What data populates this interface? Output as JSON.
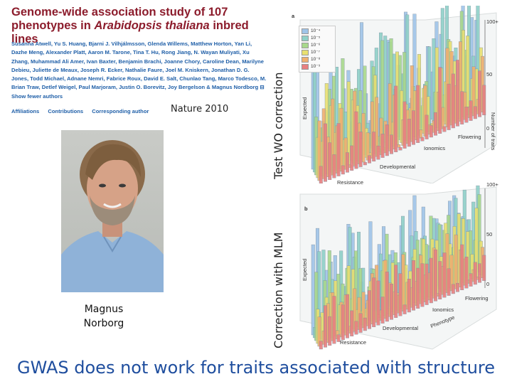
{
  "paper": {
    "title_prefix": "Genome-wide association study of 107 phenotypes in ",
    "title_italic": "Arabidopsis thaliana",
    "title_suffix": " inbred lines",
    "authors": "Susanna Atwell, Yu S. Huang, Bjarni J. Vilhjálmsson, Glenda Willems, Matthew Horton, Yan Li, Dazhe Meng, Alexander Platt, Aaron M. Tarone, Tina T. Hu, Rong Jiang, N. Wayan Muliyati, Xu Zhang, Muhammad Ali Amer, Ivan Baxter, Benjamin Brachi, Joanne Chory, Caroline Dean, Marilyne Debieu, Juliette de Meaux, Joseph R. Ecker, Nathalie Faure, Joel M. Kniskern, Jonathan D. G. Jones, Todd Michael, Adnane Nemri, Fabrice Roux, David E. Salt, Chunlao Tang, Marco Todesco, M. Brian Traw, Detlef Weigel, Paul Marjoram, Justin O. Borevitz, Joy Bergelson & Magnus Nordborg",
    "show_fewer": "Show fewer authors",
    "links": [
      "Affiliations",
      "Contributions",
      "Corresponding author"
    ],
    "journal": "Nature 2010"
  },
  "photo_caption": "Magnus\nNorborg",
  "side_labels": {
    "top": "Test WO correction",
    "bottom": "Correction with MLM"
  },
  "bottom_text": "GWAS does  not work for traits associated with structure",
  "figure": {
    "panel_a": "a",
    "panel_b": "b",
    "legend": [
      "10⁻⁴",
      "10⁻⁵",
      "10⁻⁶",
      "10⁻⁷",
      "10⁻⁸",
      "10⁻⁹"
    ],
    "legend_colors": [
      "#9fc4e8",
      "#8fd0c8",
      "#a8d88c",
      "#e8e070",
      "#f0b070",
      "#e88080"
    ],
    "ticks_a": [
      "100+",
      "50",
      "0"
    ],
    "ticks_b": [
      "100+",
      "50",
      "0"
    ],
    "z_axis": "Number of traits",
    "expected": "Expected",
    "categories": [
      "Flowering",
      "Ionomics",
      "Developmental",
      "Resistance"
    ],
    "phenotype": "Phenotype"
  }
}
